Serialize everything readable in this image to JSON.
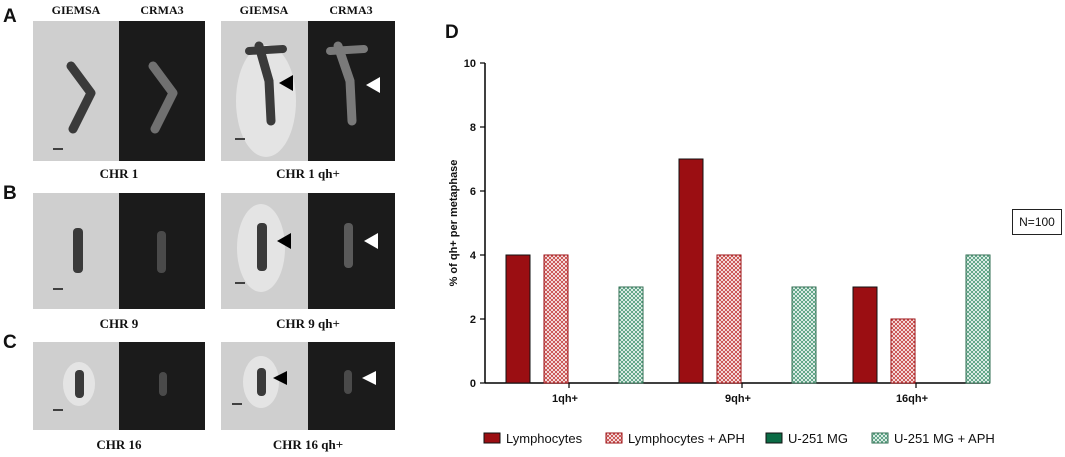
{
  "panels": {
    "A": {
      "letter": "A",
      "left_headers": [
        "GIEMSA",
        "CRMA3"
      ],
      "right_headers": [
        "GIEMSA",
        "CRMA3"
      ],
      "left_caption": "CHR 1",
      "right_caption": "CHR 1 qh+"
    },
    "B": {
      "letter": "B",
      "left_caption": "CHR 9",
      "right_caption": "CHR 9 qh+"
    },
    "C": {
      "letter": "C",
      "left_caption": "CHR 16",
      "right_caption": "CHR 16 qh+"
    },
    "D": {
      "letter": "D"
    }
  },
  "annotation": "N=100",
  "colors": {
    "lymphocytes": "#9b0e12",
    "lymphocytes_aph_hatch": "#c4403f",
    "u251": "#0b6b45",
    "u251_aph_hatch": "#4b9a78"
  },
  "chart_data": {
    "type": "bar",
    "title": "",
    "xlabel": "",
    "ylabel": "% of qh+ per metaphase",
    "ylim": [
      0,
      10
    ],
    "yticks": [
      "0",
      "2",
      "4",
      "6",
      "8",
      "10"
    ],
    "categories": [
      "1qh+",
      "9qh+",
      "16qh+"
    ],
    "series": [
      {
        "name": "Lymphocytes",
        "values": [
          4,
          7,
          3
        ],
        "pattern": "solid",
        "color": "#9b0e12"
      },
      {
        "name": "Lymphocytes + APH",
        "values": [
          4,
          4,
          2
        ],
        "pattern": "hatch",
        "color": "#c4403f"
      },
      {
        "name": "U-251 MG",
        "values": [
          0,
          0,
          0
        ],
        "pattern": "solid",
        "color": "#0b6b45"
      },
      {
        "name": "U-251 MG + APH",
        "values": [
          3,
          3,
          4
        ],
        "pattern": "hatch",
        "color": "#4b9a78"
      }
    ],
    "legend_position": "bottom"
  }
}
